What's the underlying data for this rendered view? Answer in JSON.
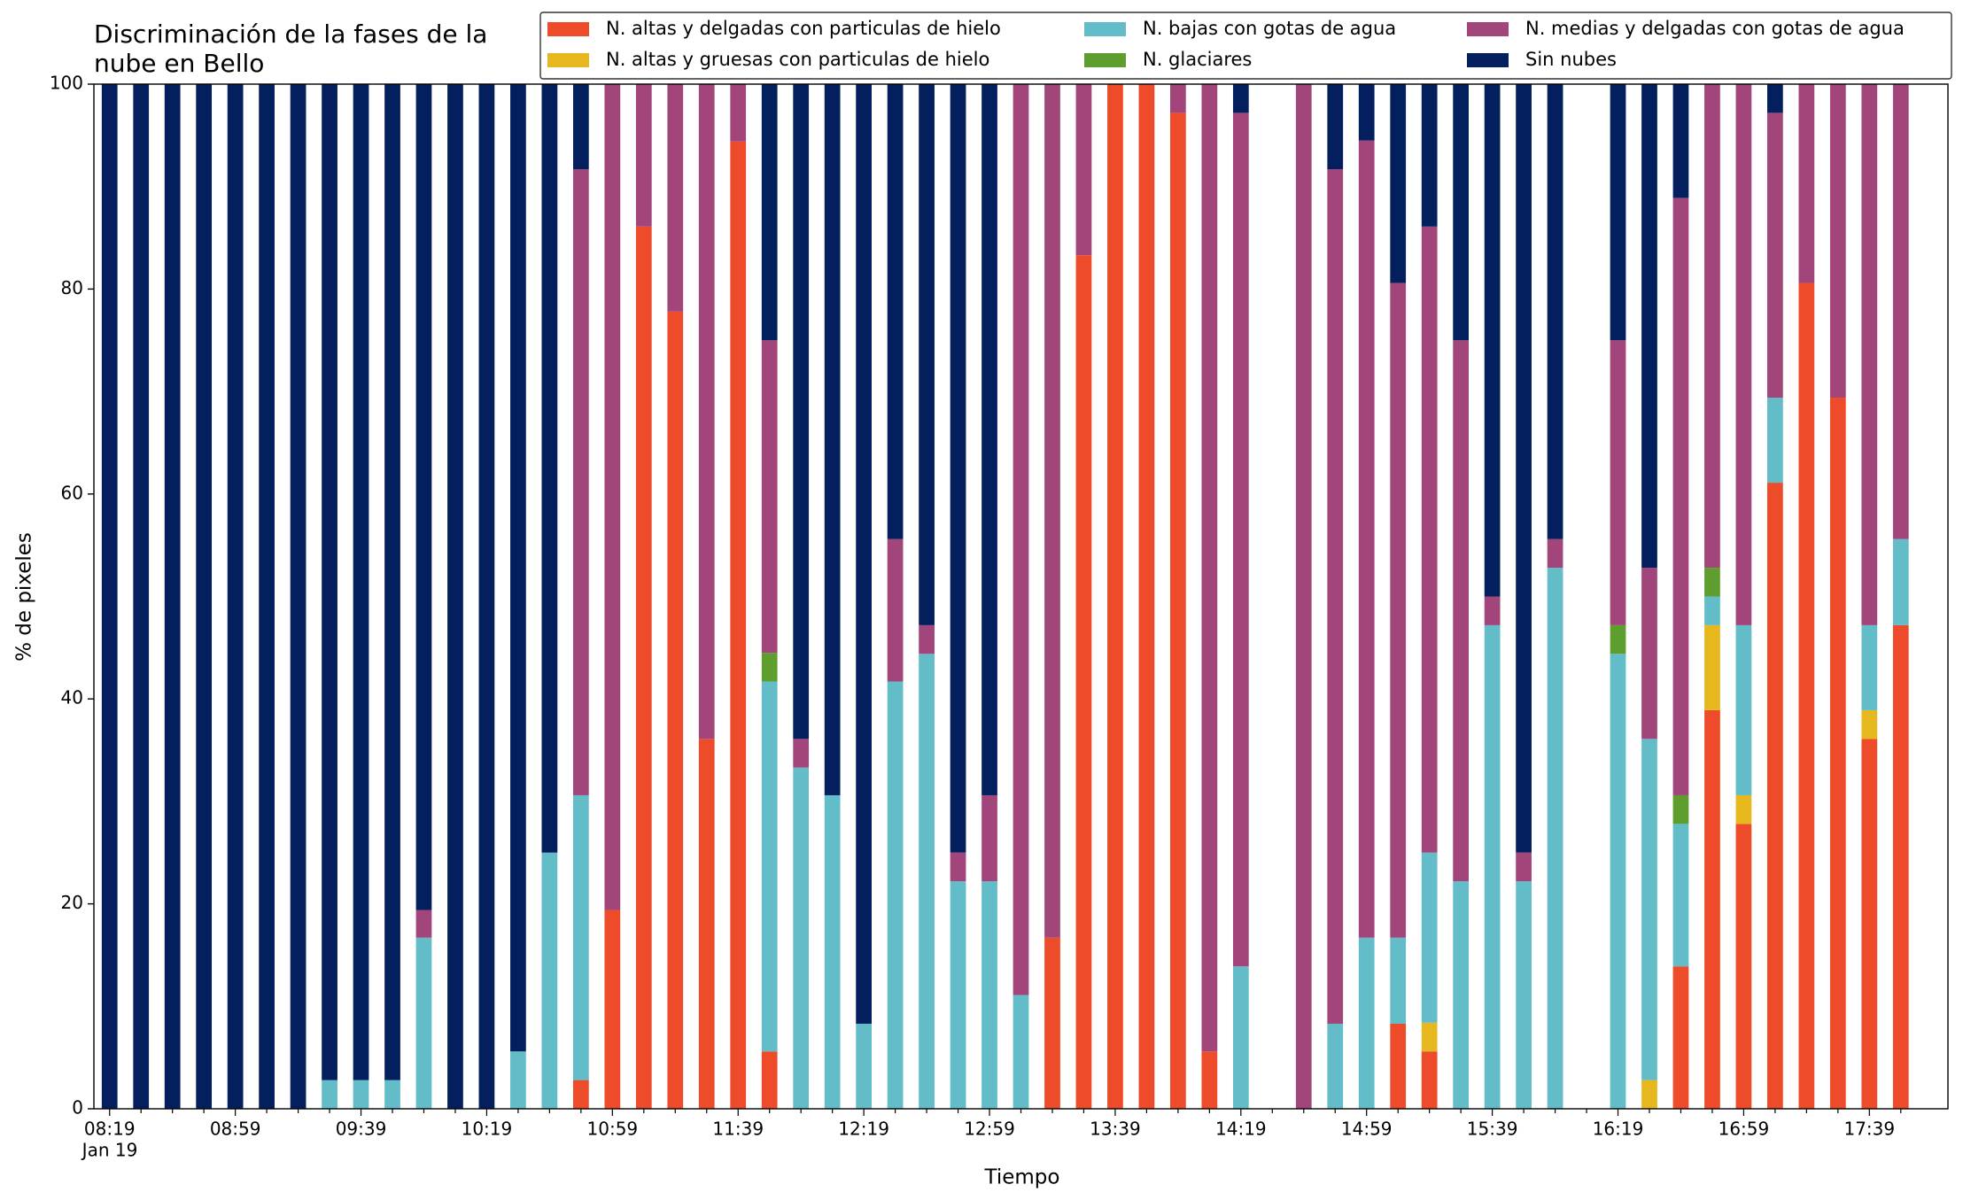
{
  "chart_data": {
    "type": "stacked_bar",
    "title": [
      "Discriminación de la fases de la",
      "nube en Bello"
    ],
    "x_label": "Tiempo",
    "y_label": "% de pixeles",
    "x_date_label": "Jan 19",
    "categories": [
      "08:19",
      null,
      null,
      null,
      "08:59",
      null,
      null,
      null,
      "09:39",
      null,
      null,
      null,
      "10:19",
      null,
      null,
      null,
      "10:59",
      null,
      null,
      null,
      "11:39",
      null,
      null,
      null,
      "12:19",
      null,
      null,
      null,
      "12:59",
      null,
      null,
      null,
      "13:39",
      null,
      null,
      null,
      "14:19",
      null,
      null,
      null,
      "14:59",
      null,
      null,
      null,
      "15:39",
      null,
      null,
      null,
      "16:19",
      null,
      null,
      null,
      "16:59",
      null,
      null,
      null,
      "17:39",
      null
    ],
    "ylim": [
      0,
      100
    ],
    "yticks": [
      0,
      20,
      40,
      60,
      80,
      100
    ],
    "legend": "top-right",
    "series": [
      {
        "name": "N. altas y delgadas con particulas de hielo",
        "color": "#ee4b2b",
        "values": [
          0,
          0,
          0,
          0,
          0,
          0,
          0,
          0,
          0,
          0,
          0,
          0,
          0,
          0,
          0,
          2.8,
          19.4,
          86.1,
          77.8,
          36.1,
          94.4,
          5.6,
          0,
          0,
          0,
          0,
          0,
          0,
          0,
          0,
          16.7,
          83.3,
          100,
          100,
          97.2,
          5.6,
          0,
          null,
          0,
          0,
          0,
          8.3,
          5.6,
          0,
          0,
          0,
          0,
          null,
          0,
          0,
          13.9,
          38.9,
          27.8,
          61.1,
          80.6,
          69.4,
          36.1,
          47.2
        ]
      },
      {
        "name": "N. altas y gruesas con particulas de hielo",
        "color": "#e6b81e",
        "values": [
          0,
          0,
          0,
          0,
          0,
          0,
          0,
          0,
          0,
          0,
          0,
          0,
          0,
          0,
          0,
          0,
          0,
          0,
          0,
          0,
          0,
          0,
          0,
          0,
          0,
          0,
          0,
          0,
          0,
          0,
          0,
          0,
          0,
          0,
          0,
          0,
          0,
          null,
          0,
          0,
          0,
          0,
          2.8,
          0,
          0,
          0,
          0,
          null,
          0,
          2.8,
          0,
          8.3,
          2.8,
          0,
          0,
          0,
          2.8,
          0
        ]
      },
      {
        "name": "N. bajas con gotas de agua",
        "color": "#63bdc8",
        "values": [
          0,
          0,
          0,
          0,
          0,
          0,
          0,
          2.8,
          2.8,
          2.8,
          16.7,
          0,
          0,
          5.6,
          25,
          27.8,
          0,
          0,
          0,
          0,
          0,
          36.1,
          33.3,
          30.6,
          8.3,
          41.7,
          44.4,
          22.2,
          22.2,
          11.1,
          0,
          0,
          0,
          0,
          0,
          0,
          13.9,
          null,
          0,
          8.3,
          16.7,
          8.4,
          16.6,
          22.2,
          47.2,
          22.2,
          52.8,
          null,
          44.4,
          33.3,
          13.9,
          2.8,
          16.6,
          8.3,
          0,
          0,
          8.3,
          8.4
        ]
      },
      {
        "name": "N. glaciares",
        "color": "#5e9e2e",
        "values": [
          0,
          0,
          0,
          0,
          0,
          0,
          0,
          0,
          0,
          0,
          0,
          0,
          0,
          0,
          0,
          0,
          0,
          0,
          0,
          0,
          0,
          2.8,
          0,
          0,
          0,
          0,
          0,
          0,
          0,
          0,
          0,
          0,
          0,
          0,
          0,
          0,
          0,
          null,
          0,
          0,
          0,
          0,
          0,
          0,
          0,
          0,
          0,
          null,
          2.8,
          0,
          2.8,
          2.8,
          0,
          0,
          0,
          0,
          0,
          0
        ]
      },
      {
        "name": "N. medias y delgadas con gotas de agua",
        "color": "#a2457b",
        "values": [
          0,
          0,
          0,
          0,
          0,
          0,
          0,
          0,
          0,
          0,
          2.7,
          0,
          0,
          0,
          0,
          61.1,
          80.6,
          13.9,
          22.2,
          63.9,
          5.6,
          30.5,
          2.8,
          0,
          0,
          13.9,
          2.8,
          2.8,
          8.4,
          88.9,
          83.3,
          16.7,
          0,
          0,
          2.8,
          94.4,
          83.3,
          null,
          100,
          83.4,
          77.8,
          63.9,
          61.1,
          52.8,
          2.8,
          2.8,
          2.8,
          null,
          27.8,
          16.7,
          58.3,
          47.2,
          52.8,
          27.8,
          19.4,
          30.6,
          52.8,
          44.4
        ]
      },
      {
        "name": "Sin nubes",
        "color": "#031f5e",
        "values": [
          100,
          100,
          100,
          100,
          100,
          100,
          100,
          97.2,
          97.2,
          97.2,
          80.6,
          100,
          100,
          94.4,
          75,
          8.3,
          0,
          0,
          0,
          0,
          0,
          25,
          63.9,
          69.4,
          91.7,
          44.4,
          52.8,
          75,
          69.4,
          0,
          0,
          0,
          0,
          0,
          0,
          0,
          2.8,
          null,
          0,
          8.3,
          5.5,
          19.4,
          13.9,
          25,
          50,
          75,
          44.4,
          null,
          25,
          47.2,
          11.1,
          0,
          0,
          2.8,
          0,
          0,
          0,
          0
        ]
      }
    ]
  }
}
